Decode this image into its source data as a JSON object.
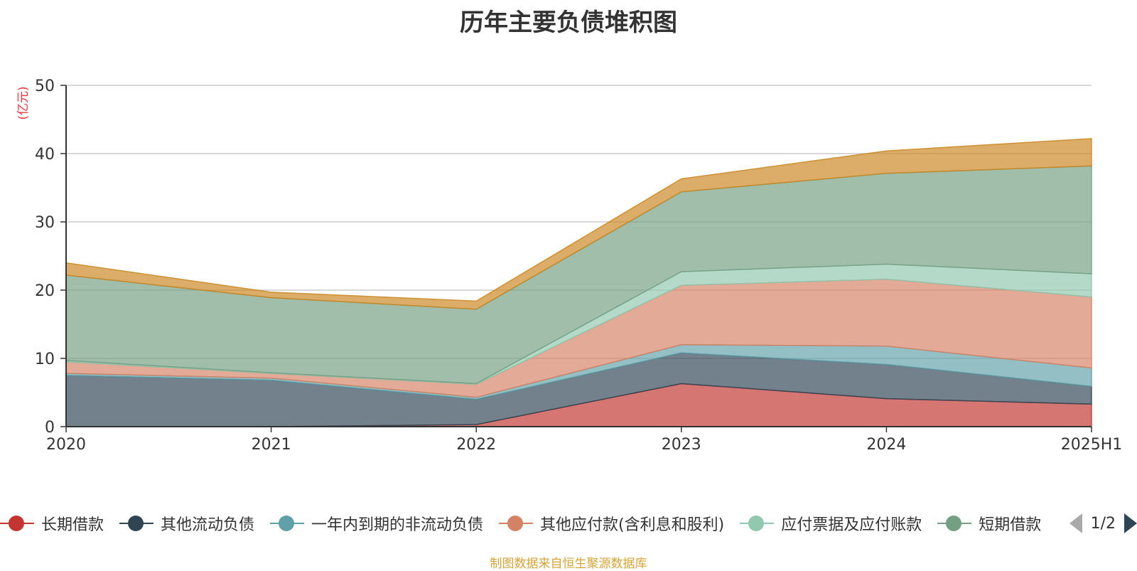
{
  "chart_data": {
    "type": "area",
    "stacked": true,
    "title": "历年主要负债堆积图",
    "unit_label": "(亿元)",
    "categories": [
      "2020",
      "2021",
      "2022",
      "2023",
      "2024",
      "2025H1"
    ],
    "ylim": [
      0,
      50
    ],
    "yticks": [
      0,
      10,
      20,
      30,
      40,
      50
    ],
    "grid": true,
    "legend_position": "bottom",
    "series": [
      {
        "name": "长期借款",
        "color": "#c23531",
        "values": [
          0,
          0,
          0.3,
          6.3,
          4.1,
          3.3
        ]
      },
      {
        "name": "其他流动负债",
        "color": "#2f4554",
        "values": [
          7.5,
          6.8,
          3.7,
          4.5,
          5.0,
          2.6
        ]
      },
      {
        "name": "一年内到期的非流动负债",
        "color": "#61a0a8",
        "values": [
          0.3,
          0.3,
          0.3,
          1.2,
          2.7,
          2.7
        ]
      },
      {
        "name": "其他应付款(含利息和股利)",
        "color": "#d48265",
        "values": [
          1.7,
          0.7,
          1.9,
          8.7,
          9.8,
          10.4
        ]
      },
      {
        "name": "应付票据及应付账款",
        "color": "#91c7ae",
        "values": [
          0.2,
          0.1,
          0.1,
          2.0,
          2.2,
          3.4
        ]
      },
      {
        "name": "短期借款",
        "color": "#749f83",
        "values": [
          12.5,
          11.0,
          10.9,
          11.7,
          13.3,
          15.8
        ]
      },
      {
        "name": "",
        "color": "#ca8622",
        "values": [
          1.8,
          0.8,
          1.2,
          1.9,
          3.3,
          4.0
        ]
      }
    ]
  },
  "legend": {
    "items": [
      "长期借款",
      "其他流动负债",
      "一年内到期的非流动负债",
      "其他应付款(含利息和股利)",
      "应付票据及应付账款",
      "短期借款"
    ],
    "page_indicator": "1/2"
  },
  "source_note": "制图数据来自恒生聚源数据库"
}
